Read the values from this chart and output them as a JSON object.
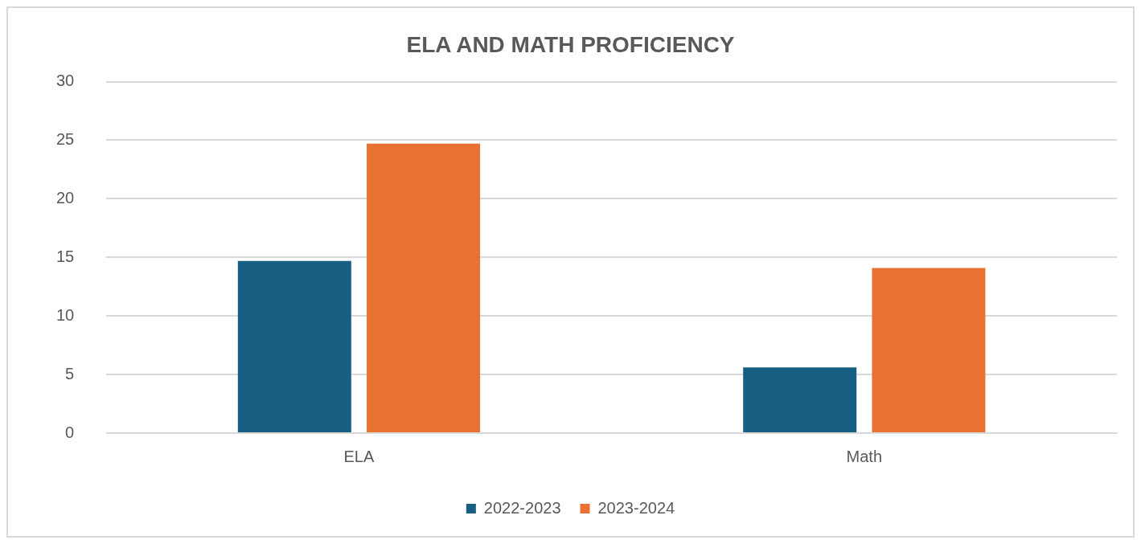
{
  "chart_data": {
    "type": "bar",
    "title": "ELA AND MATH PROFICIENCY",
    "categories": [
      "ELA",
      "Math"
    ],
    "series": [
      {
        "name": "2022-2023",
        "color": "#176083",
        "values": [
          14.7,
          5.6
        ]
      },
      {
        "name": "2023-2024",
        "color": "#e97132",
        "values": [
          24.7,
          14.1
        ]
      }
    ],
    "ylim": [
      0,
      30
    ],
    "yticks": [
      0,
      5,
      10,
      15,
      20,
      25,
      30
    ],
    "grid": "y",
    "legend": "bottom"
  }
}
